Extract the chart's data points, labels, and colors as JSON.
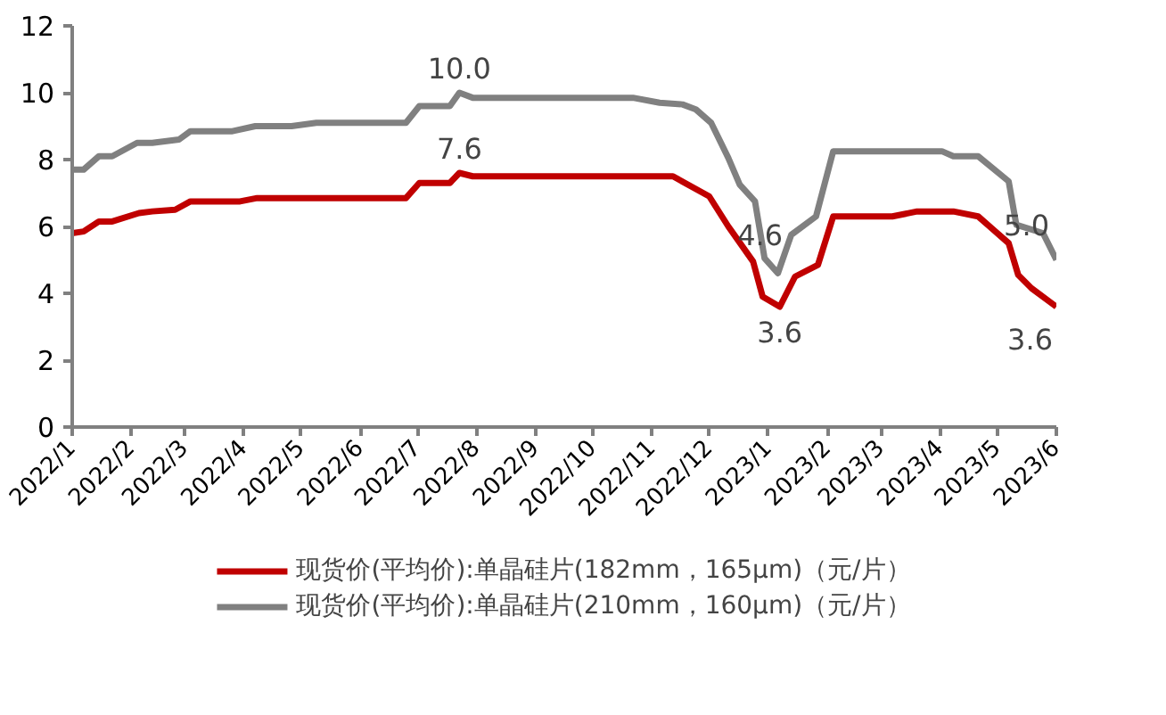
{
  "chart_data": {
    "type": "line",
    "xlim": [
      "2022-01-01",
      "2023-06-01"
    ],
    "ylim": [
      0,
      12
    ],
    "yticks": [
      0,
      2,
      4,
      6,
      8,
      10,
      12
    ],
    "xticks": [
      {
        "value": "2022-01-01",
        "label": "2022/1"
      },
      {
        "value": "2022-02-01",
        "label": "2022/2"
      },
      {
        "value": "2022-03-01",
        "label": "2022/3"
      },
      {
        "value": "2022-04-01",
        "label": "2022/4"
      },
      {
        "value": "2022-05-01",
        "label": "2022/5"
      },
      {
        "value": "2022-06-01",
        "label": "2022/6"
      },
      {
        "value": "2022-07-01",
        "label": "2022/7"
      },
      {
        "value": "2022-08-01",
        "label": "2022/8"
      },
      {
        "value": "2022-09-01",
        "label": "2022/9"
      },
      {
        "value": "2022-10-01",
        "label": "2022/10"
      },
      {
        "value": "2022-11-01",
        "label": "2022/11"
      },
      {
        "value": "2022-12-01",
        "label": "2022/12"
      },
      {
        "value": "2023-01-01",
        "label": "2023/1"
      },
      {
        "value": "2023-02-01",
        "label": "2023/2"
      },
      {
        "value": "2023-03-01",
        "label": "2023/3"
      },
      {
        "value": "2023-04-01",
        "label": "2023/4"
      },
      {
        "value": "2023-05-01",
        "label": "2023/5"
      },
      {
        "value": "2023-06-01",
        "label": "2023/6"
      }
    ],
    "grid": false,
    "legend": "bottom",
    "line_style": "solid",
    "series": [
      {
        "name": "现货价(平均价):单晶硅片(182mm，165μm)（元/片）",
        "color": "#c00000",
        "x": [
          "2022-01-01",
          "2022-01-07",
          "2022-01-15",
          "2022-01-22",
          "2022-02-05",
          "2022-02-12",
          "2022-02-24",
          "2022-03-04",
          "2022-03-30",
          "2022-04-08",
          "2022-06-25",
          "2022-07-02",
          "2022-07-18",
          "2022-07-23",
          "2022-07-30",
          "2022-11-12",
          "2022-12-01",
          "2022-12-11",
          "2022-12-24",
          "2022-12-29",
          "2023-01-07",
          "2023-01-15",
          "2023-01-27",
          "2023-02-04",
          "2023-03-07",
          "2023-03-20",
          "2023-04-08",
          "2023-04-21",
          "2023-05-07",
          "2023-05-12",
          "2023-05-19",
          "2023-06-01"
        ],
        "values": [
          5.8,
          5.85,
          6.15,
          6.15,
          6.4,
          6.45,
          6.5,
          6.75,
          6.75,
          6.85,
          6.85,
          7.3,
          7.3,
          7.6,
          7.5,
          7.5,
          6.9,
          6.0,
          4.95,
          3.9,
          3.6,
          4.5,
          4.85,
          6.3,
          6.3,
          6.45,
          6.45,
          6.3,
          5.5,
          4.55,
          4.15,
          3.6
        ]
      },
      {
        "name": "现货价(平均价):单晶硅片(210mm，160μm)（元/片）",
        "color": "#808080",
        "x": [
          "2022-01-01",
          "2022-01-07",
          "2022-01-15",
          "2022-01-22",
          "2022-02-04",
          "2022-02-12",
          "2022-02-26",
          "2022-03-04",
          "2022-03-26",
          "2022-04-07",
          "2022-04-26",
          "2022-05-09",
          "2022-06-25",
          "2022-07-02",
          "2022-07-18",
          "2022-07-23",
          "2022-07-30",
          "2022-10-22",
          "2022-11-05",
          "2022-11-17",
          "2022-11-24",
          "2022-12-02",
          "2022-12-11",
          "2022-12-17",
          "2022-12-25",
          "2022-12-30",
          "2023-01-06",
          "2023-01-13",
          "2023-01-26",
          "2023-02-04",
          "2023-04-02",
          "2023-04-08",
          "2023-04-21",
          "2023-05-07",
          "2023-05-11",
          "2023-05-25",
          "2023-06-01"
        ],
        "values": [
          7.7,
          7.7,
          8.1,
          8.1,
          8.5,
          8.5,
          8.6,
          8.85,
          8.85,
          9.0,
          9.0,
          9.1,
          9.1,
          9.6,
          9.6,
          10.0,
          9.85,
          9.85,
          9.7,
          9.65,
          9.5,
          9.1,
          8.05,
          7.25,
          6.75,
          5.05,
          4.6,
          5.75,
          6.3,
          8.25,
          8.25,
          8.1,
          8.1,
          7.35,
          6.05,
          5.8,
          5.0
        ]
      }
    ],
    "annotations": [
      {
        "text": "7.6",
        "x": "2022-07-23",
        "y": 7.6
      },
      {
        "text": "10.0",
        "x": "2022-07-23",
        "y": 10.0
      },
      {
        "text": "4.6",
        "x": "2023-01-06",
        "y": 4.6
      },
      {
        "text": "3.6",
        "x": "2023-01-07",
        "y": 3.6
      },
      {
        "text": "5.0",
        "x": "2023-06-01",
        "y": 5.0
      },
      {
        "text": "3.6",
        "x": "2023-06-01",
        "y": 3.6
      }
    ]
  }
}
